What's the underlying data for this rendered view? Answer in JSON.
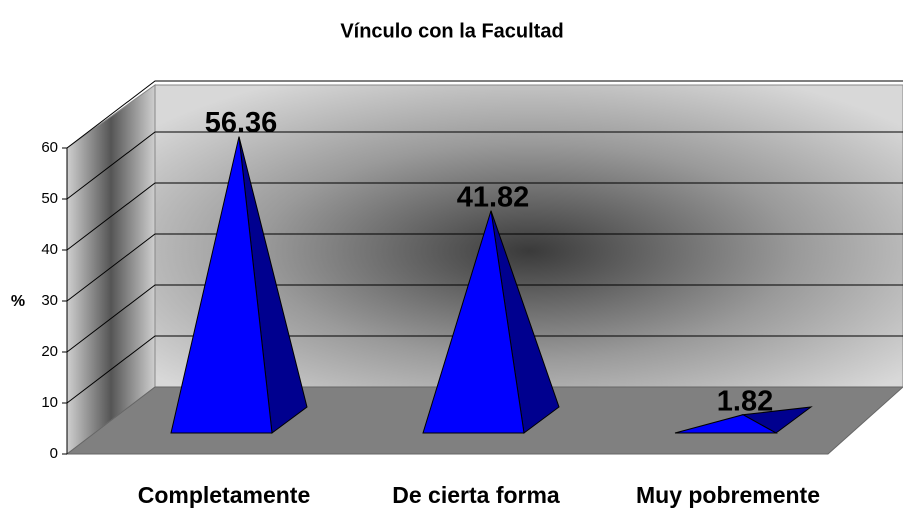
{
  "chart_data": {
    "type": "pyramid3d",
    "title": "Vínculo con la Facultad",
    "ylabel": "%",
    "categories": [
      "Completamente",
      "De cierta forma",
      "Muy pobremente"
    ],
    "values": [
      56.36,
      41.82,
      1.82
    ],
    "color": "#0000ff",
    "ylim": [
      0,
      60
    ],
    "yticks": [
      0,
      10,
      20,
      30,
      40,
      50,
      60
    ],
    "grid": true
  }
}
